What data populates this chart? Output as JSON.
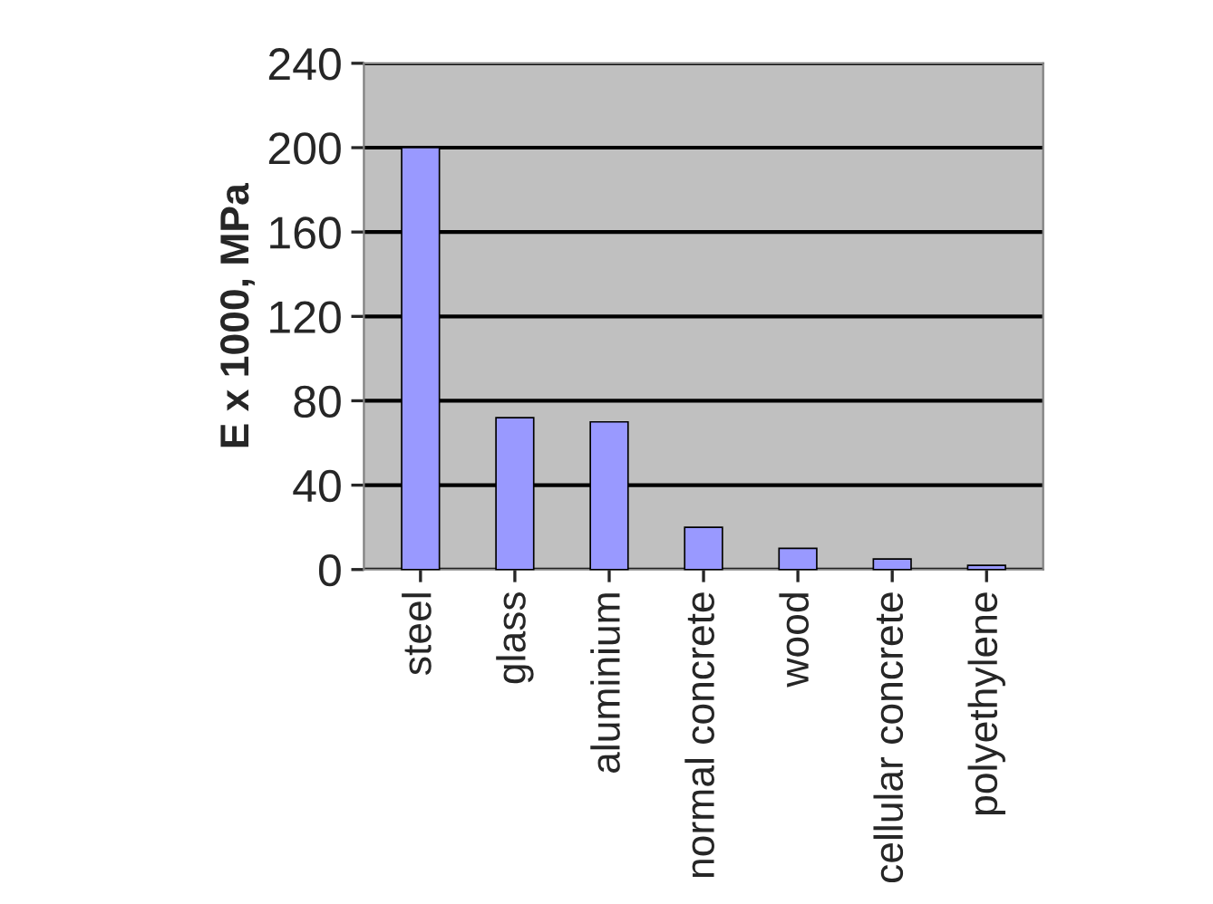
{
  "chart_data": {
    "type": "bar",
    "ylabel": "E x 1000, MPa",
    "categories": [
      "steel",
      "glass",
      "aluminium",
      "normal concrete",
      "wood",
      "cellular concrete",
      "polyethylene"
    ],
    "values": [
      200,
      72,
      70,
      20,
      10,
      5,
      2
    ],
    "color": "#9999ff",
    "ylim": [
      0,
      240
    ],
    "yticks": [
      0,
      40,
      80,
      120,
      160,
      200,
      240
    ],
    "grid": "y"
  }
}
